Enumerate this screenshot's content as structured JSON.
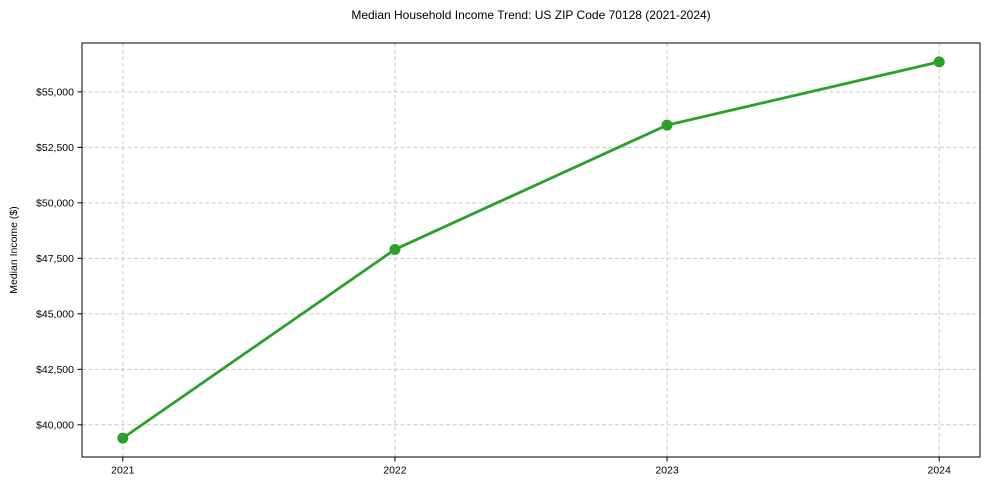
{
  "chart_data": {
    "type": "line",
    "title": "Median Household Income Trend: US ZIP Code 70128 (2021-2024)",
    "xlabel": "",
    "ylabel": "Median Income ($)",
    "x": [
      2021,
      2022,
      2023,
      2024
    ],
    "series": [
      {
        "name": "Median Household Income",
        "values": [
          39400,
          47900,
          53500,
          56350
        ],
        "color": "#2ca02c",
        "marker": "circle"
      }
    ],
    "xticks": {
      "values": [
        2021,
        2022,
        2023,
        2024
      ],
      "labels": [
        "2021",
        "2022",
        "2023",
        "2024"
      ]
    },
    "yticks": {
      "values": [
        40000,
        42500,
        45000,
        47500,
        50000,
        52500,
        55000
      ],
      "labels": [
        "$40,000",
        "$42,500",
        "$45,000",
        "$47,500",
        "$50,000",
        "$52,500",
        "$55,000"
      ]
    },
    "xlim": [
      2020.85,
      2024.15
    ],
    "ylim": [
      38550,
      57200
    ],
    "grid": {
      "show": true,
      "style": "dashed",
      "color": "#c9c9c9"
    },
    "legend": {
      "show": false
    },
    "colors": {
      "line": "#2ca02c",
      "axis": "#000000",
      "text": "#000000",
      "background": "#ffffff"
    }
  }
}
